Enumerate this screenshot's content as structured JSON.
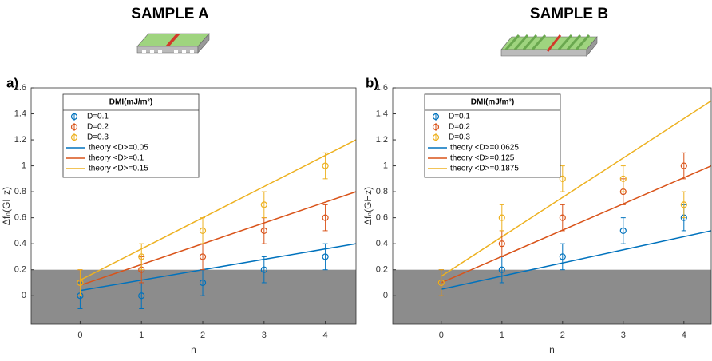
{
  "chart_data": [
    {
      "type": "scatter",
      "title": "SAMPLE A",
      "panel_label": "a)",
      "x_label": "n",
      "y_label": "Δfₙ(GHz)",
      "legend_title": "DMI(mJ/m²)",
      "legend": "upper left",
      "shade_below": 0.2,
      "shade_color": "#8c8c8c",
      "x": [
        0,
        1,
        2,
        3,
        4
      ],
      "series": [
        {
          "name": "D=0.1",
          "color": "#0072BD",
          "values": [
            0,
            0,
            0.1,
            0.2,
            0.3
          ],
          "errors": [
            0.1,
            0.1,
            0.1,
            0.1,
            0.1
          ]
        },
        {
          "name": "D=0.2",
          "color": "#D95319",
          "values": [
            0.1,
            0.2,
            0.3,
            0.5,
            0.6
          ],
          "errors": [
            0.1,
            0.1,
            0.1,
            0.1,
            0.1
          ]
        },
        {
          "name": "D=0.3",
          "color": "#EDB120",
          "values": [
            0.1,
            0.3,
            0.5,
            0.7,
            1.0
          ],
          "errors": [
            0.1,
            0.1,
            0.1,
            0.1,
            0.1
          ]
        }
      ],
      "lines": [
        {
          "name": "theory <D>=0.05",
          "color": "#0072BD",
          "x": [
            0,
            4.5
          ],
          "values": [
            0.04,
            0.4
          ]
        },
        {
          "name": "theory <D>=0.1",
          "color": "#D95319",
          "x": [
            0,
            4.5
          ],
          "values": [
            0.08,
            0.8
          ]
        },
        {
          "name": "theory <D>=0.15",
          "color": "#EDB120",
          "x": [
            0,
            4.5
          ],
          "values": [
            0.12,
            1.2
          ]
        }
      ],
      "xlim": [
        -0.8,
        4.5
      ],
      "ylim": [
        -0.22,
        1.6
      ],
      "xticks": [
        0,
        1,
        2,
        3,
        4
      ],
      "yticks": [
        0,
        0.2,
        0.4,
        0.6,
        0.8,
        1,
        1.2,
        1.4,
        1.6
      ]
    },
    {
      "type": "scatter",
      "title": "SAMPLE B",
      "panel_label": "b)",
      "x_label": "n",
      "y_label": "Δfₙ(GHz)",
      "legend_title": "DMI(mJ/m²)",
      "legend": "upper left",
      "shade_below": 0.2,
      "shade_color": "#8c8c8c",
      "x": [
        0,
        1,
        2,
        3,
        4
      ],
      "series": [
        {
          "name": "D=0.1",
          "color": "#0072BD",
          "values": [
            0.1,
            0.2,
            0.3,
            0.5,
            0.6
          ],
          "errors": [
            0.1,
            0.1,
            0.1,
            0.1,
            0.1
          ]
        },
        {
          "name": "D=0.2",
          "color": "#D95319",
          "values": [
            0.1,
            0.4,
            0.6,
            0.8,
            1.0
          ],
          "errors": [
            0.1,
            0.1,
            0.1,
            0.1,
            0.1
          ]
        },
        {
          "name": "D=0.3",
          "color": "#EDB120",
          "values": [
            0.1,
            0.6,
            0.9,
            0.9,
            0.7
          ],
          "errors": [
            0.1,
            0.1,
            0.1,
            0.1,
            0.1
          ]
        }
      ],
      "lines": [
        {
          "name": "theory <D>=0.0625",
          "color": "#0072BD",
          "x": [
            0,
            4.45
          ],
          "values": [
            0.05,
            0.5
          ]
        },
        {
          "name": "theory <D>=0.125",
          "color": "#D95319",
          "x": [
            0,
            4.45
          ],
          "values": [
            0.1,
            1.0
          ]
        },
        {
          "name": "theory <D>=0.1875",
          "color": "#EDB120",
          "x": [
            0,
            4.45
          ],
          "values": [
            0.15,
            1.5
          ]
        }
      ],
      "xlim": [
        -0.8,
        4.45
      ],
      "ylim": [
        -0.22,
        1.6
      ],
      "xticks": [
        0,
        1,
        2,
        3,
        4
      ],
      "yticks": [
        0,
        0.2,
        0.4,
        0.6,
        0.8,
        1,
        1.2,
        1.4,
        1.6
      ]
    }
  ]
}
